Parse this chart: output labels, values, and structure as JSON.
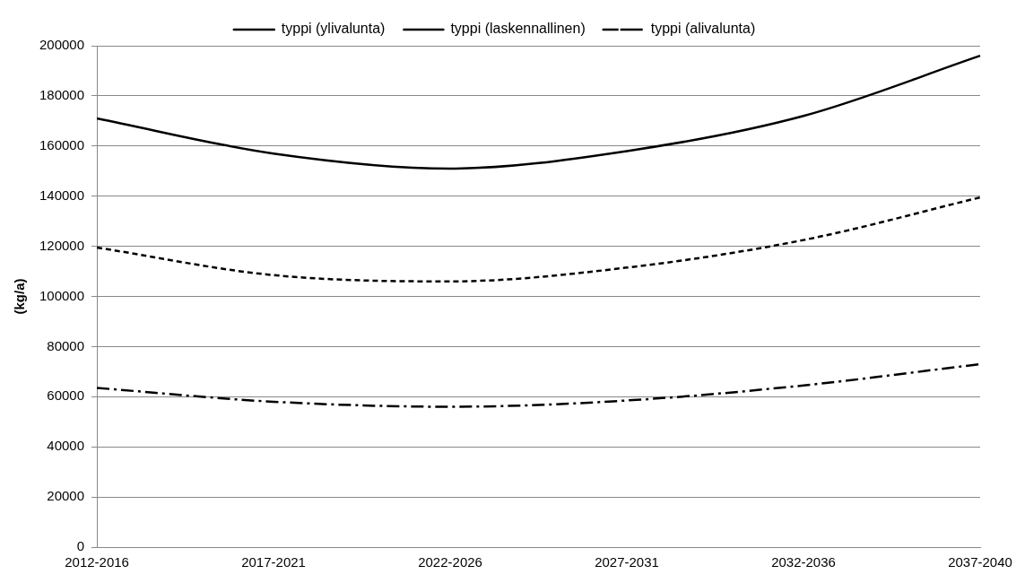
{
  "chart_data": {
    "type": "line",
    "ylabel": "(kg/a)",
    "categories": [
      "2012-2016",
      "2017-2021",
      "2022-2026",
      "2027-2031",
      "2032-2036",
      "2037-2040"
    ],
    "series": [
      {
        "name": "typpi (ylivalunta)",
        "color": "#000000",
        "line_style": "solid",
        "values": [
          171000,
          157000,
          151000,
          158000,
          172000,
          196000
        ]
      },
      {
        "name": "typpi (laskennallinen)",
        "color": "#000000",
        "line_style": "dashed",
        "values": [
          119500,
          108500,
          106000,
          111500,
          122500,
          139500
        ]
      },
      {
        "name": "typpi (alivalunta)",
        "color": "#000000",
        "line_style": "dashdot",
        "values": [
          63500,
          58000,
          56000,
          58500,
          64500,
          73000
        ]
      }
    ],
    "ylim": [
      0,
      200000
    ],
    "yticks": [
      0,
      20000,
      40000,
      60000,
      80000,
      100000,
      120000,
      140000,
      160000,
      180000,
      200000
    ],
    "grid": "y",
    "legend": "top",
    "marker": "none"
  }
}
